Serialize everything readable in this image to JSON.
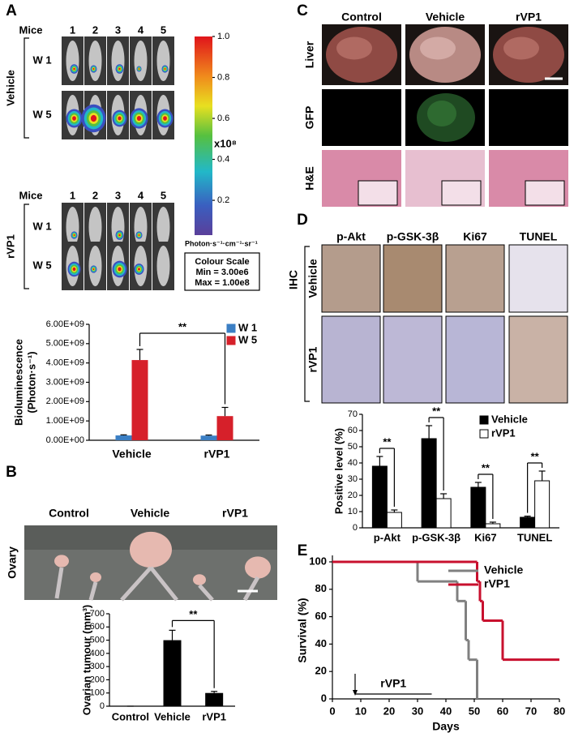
{
  "panels": {
    "a": {
      "letter": "A",
      "mice_label": "Mice",
      "mice": [
        "1",
        "2",
        "3",
        "4",
        "5"
      ],
      "groups": [
        {
          "name": "Vehicle",
          "rows": [
            "W 1",
            "W 5"
          ]
        },
        {
          "name": "rVP1",
          "rows": [
            "W 1",
            "W 5"
          ]
        }
      ],
      "colorbar": {
        "lim": [
          0.03,
          1.0
        ],
        "ticks": [
          {
            "value": 1.0,
            "label": "1.0"
          },
          {
            "value": 0.8,
            "label": "0.8"
          },
          {
            "value": 0.6,
            "label": "0.6"
          },
          {
            "value": 0.4,
            "label": "0.4"
          },
          {
            "value": 0.2,
            "label": "0.2"
          }
        ],
        "multiplier": "x10⁸",
        "unit": "Photon·s⁻¹·cm⁻¹·sr⁻¹",
        "box": [
          "Colour Scale",
          "Min = 3.00e6",
          "Max = 1.00e8"
        ]
      }
    },
    "b": {
      "letter": "B",
      "columns": [
        "Control",
        "Vehicle",
        "rVP1"
      ],
      "row": "Ovary"
    },
    "c": {
      "letter": "C",
      "columns": [
        "Control",
        "Vehicle",
        "rVP1"
      ],
      "rows": [
        "Liver",
        "GFP",
        "H&E"
      ]
    },
    "d": {
      "letter": "D",
      "columns": [
        "p-Akt",
        "p-GSK-3β",
        "Ki67",
        "TUNEL"
      ],
      "method": "IHC",
      "rows": [
        "Vehicle",
        "rVP1"
      ]
    },
    "e": {
      "letter": "E"
    }
  },
  "chart_data": [
    {
      "type": "bar",
      "ylabel": [
        "Bioluminescence",
        "(Photon·s⁻¹)"
      ],
      "categories": [
        "Vehicle",
        "rVP1"
      ],
      "series": [
        {
          "name": "W 1",
          "color": "#3b7fc4",
          "values": [
            250000000,
            240000000
          ],
          "errors": [
            30000000,
            30000000
          ]
        },
        {
          "name": "W 5",
          "color": "#d6202a",
          "values": [
            4150000000,
            1250000000
          ],
          "errors": [
            550000000,
            450000000
          ]
        }
      ],
      "ylim": [
        0,
        6000000000
      ],
      "yticks": [
        {
          "value": 0,
          "label": "0.00E+00"
        },
        {
          "value": 1000000000,
          "label": "1.00E+09"
        },
        {
          "value": 2000000000,
          "label": "2.00E+09"
        },
        {
          "value": 3000000000,
          "label": "3.00E+09"
        },
        {
          "value": 4000000000,
          "label": "4.00E+09"
        },
        {
          "value": 5000000000,
          "label": "5.00E+09"
        },
        {
          "value": 6000000000,
          "label": "6.00E+09"
        }
      ],
      "legend": "upper right",
      "significance": "**"
    },
    {
      "type": "bar",
      "ylabel": "Ovarian tumour (mm³)",
      "categories": [
        "Control",
        "Vehicle",
        "rVP1"
      ],
      "values": [
        0,
        500,
        100
      ],
      "errors": [
        0,
        75,
        12
      ],
      "color": "#000000",
      "ylim": [
        0,
        700
      ],
      "yticks": [
        0,
        100,
        200,
        300,
        400,
        500,
        600,
        700
      ],
      "significance": "**"
    },
    {
      "type": "bar",
      "ylabel": "Positive level (%)",
      "categories": [
        "p-Akt",
        "p-GSK-3β",
        "Ki67",
        "TUNEL"
      ],
      "series": [
        {
          "name": "Vehicle",
          "color": "#000000",
          "values": [
            38,
            55,
            25,
            6.5
          ],
          "errors": [
            6,
            8,
            3,
            0.7
          ]
        },
        {
          "name": "rVP1",
          "color": "#ffffff",
          "values": [
            9.5,
            18,
            2.5,
            29
          ],
          "errors": [
            1.5,
            3,
            1,
            6
          ]
        }
      ],
      "ylim": [
        0,
        70
      ],
      "yticks": [
        0,
        10,
        20,
        30,
        40,
        50,
        60,
        70
      ],
      "legend": "upper right",
      "significance": [
        "**",
        "**",
        "**",
        "**"
      ]
    },
    {
      "type": "line",
      "step": true,
      "xlabel": "Days",
      "ylabel": "Survival (%)",
      "series": [
        {
          "name": "Vehicle",
          "color": "#808080",
          "x": [
            0,
            30,
            44,
            47,
            48,
            51
          ],
          "values": [
            100,
            85.7,
            71.4,
            42.9,
            28.6,
            0
          ]
        },
        {
          "name": "rVP1",
          "color": "#c8102e",
          "x": [
            0,
            51,
            52,
            53,
            60,
            80
          ],
          "values": [
            100,
            85.7,
            71.4,
            57.1,
            28.6,
            28.6
          ]
        }
      ],
      "xlim": [
        0,
        80
      ],
      "xticks": [
        0,
        10,
        20,
        30,
        40,
        50,
        60,
        70,
        80
      ],
      "ylim": [
        0,
        100
      ],
      "yticks": [
        0,
        20,
        40,
        60,
        80,
        100
      ],
      "legend": "upper right",
      "treatment": {
        "label": "rVP1",
        "start": 8,
        "end": 35
      }
    }
  ]
}
